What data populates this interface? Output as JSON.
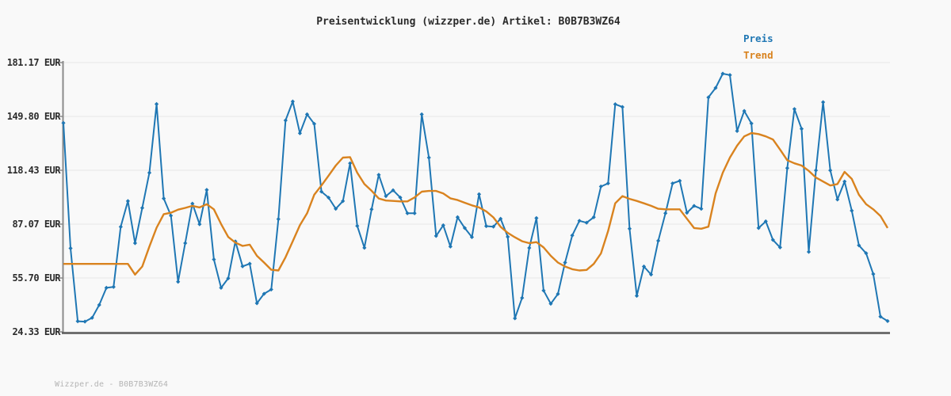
{
  "header": {
    "title": "Preisentwicklung (wizzper.de) Artikel: B0B7B3WZ64"
  },
  "footer": {
    "watermark": "Wizzper.de - B0B7B3WZ64"
  },
  "chart_data": {
    "type": "line",
    "title": "Preisentwicklung (wizzper.de) Artikel: B0B7B3WZ64",
    "grid": "horizontal",
    "legend_position": "top-right",
    "x_axis": {
      "tick_labels_visible": false,
      "points": 116
    },
    "y_axis": {
      "unit": "EUR",
      "tick_values": [
        181.17,
        149.8,
        118.43,
        87.07,
        55.7,
        24.33
      ],
      "tick_labels": [
        "181.17 EUR",
        "149.80 EUR",
        "118.43 EUR",
        "87.07 EUR",
        "55.70 EUR",
        "24.33 EUR"
      ]
    },
    "ylim": [
      24.33,
      181.17
    ],
    "colors": {
      "grid": "#e7e7e7",
      "axis_left": "#8a8a8a",
      "axis_bottom": "#5a5a5a",
      "background": "#f9f9f9"
    },
    "series": [
      {
        "name": "Preis",
        "color": "#1f77b4",
        "marker": "diamond",
        "values": [
          146,
          73,
          30.5,
          30.3,
          32.5,
          40,
          50,
          50.5,
          85.5,
          100.5,
          76,
          96.5,
          117,
          157,
          102,
          92,
          53.5,
          76,
          99,
          87,
          107,
          66.5,
          50,
          55.5,
          77,
          62.5,
          64,
          41,
          46.5,
          49,
          90,
          147.5,
          158.5,
          140,
          151,
          145.5,
          106,
          102.5,
          96,
          100.5,
          122.5,
          86,
          73.3,
          95.7,
          115.8,
          103.4,
          106.8,
          102.6,
          93.4,
          93.4,
          151,
          125.8,
          80.2,
          86.4,
          74,
          91.1,
          84.8,
          79.5,
          104.5,
          85.9,
          85.6,
          90.2,
          79.7,
          32.2,
          44.1,
          73.2,
          90.6,
          48.4,
          40.7,
          46.4,
          64.7,
          80.5,
          89,
          87.9,
          91.1,
          109,
          110.8,
          156.9,
          155.3,
          84.4,
          45.3,
          62.4,
          57.7,
          77.4,
          93.4,
          110.8,
          112.3,
          93.7,
          97.7,
          96,
          160.9,
          166.4,
          174.7,
          173.9,
          141.3,
          153,
          145.7,
          84.8,
          88.7,
          77.9,
          73.5,
          119.7,
          154.1,
          142.6,
          70.9,
          118.4,
          158.1,
          118.4,
          101.4,
          111.9,
          94.9,
          74.7,
          70.1,
          58,
          33.2,
          30.6
        ]
      },
      {
        "name": "Trend",
        "color": "#d9831f",
        "marker": "none",
        "values": [
          63.9,
          63.9,
          63.9,
          63.9,
          63.9,
          63.9,
          63.9,
          63.9,
          63.9,
          63.9,
          57.7,
          62.4,
          74.0,
          85.0,
          92.9,
          93.7,
          95.5,
          96.5,
          97.7,
          96.8,
          98.7,
          95.7,
          87.1,
          79.6,
          76.3,
          74.4,
          75.1,
          68.6,
          64.7,
          60.5,
          60.1,
          67.8,
          77.1,
          86.4,
          93.4,
          104.2,
          109.6,
          115.3,
          121.2,
          125.8,
          126.1,
          117.0,
          110.4,
          106.5,
          102.0,
          100.8,
          100.6,
          100.3,
          100.3,
          102.6,
          106.0,
          106.4,
          106.4,
          104.9,
          102.1,
          101.1,
          99.5,
          98.0,
          96.8,
          94.5,
          91.0,
          85.5,
          82.0,
          79.4,
          77.1,
          76.0,
          76.6,
          73.5,
          68.6,
          64.7,
          62.4,
          60.8,
          60.1,
          60.4,
          63.9,
          70.0,
          83.0,
          99.2,
          103.4,
          101.8,
          100.6,
          99.2,
          97.7,
          96.0,
          95.7,
          95.7,
          95.7,
          90.2,
          84.8,
          84.4,
          85.6,
          105.0,
          117.0,
          125.8,
          132.8,
          138.2,
          140.1,
          139.5,
          138.2,
          136.4,
          130.5,
          124.3,
          122.5,
          121.2,
          118.1,
          114.2,
          111.9,
          109.6,
          110.4,
          117.5,
          113.4,
          104.2,
          98.7,
          95.7,
          91.8,
          84.8
        ]
      }
    ]
  }
}
